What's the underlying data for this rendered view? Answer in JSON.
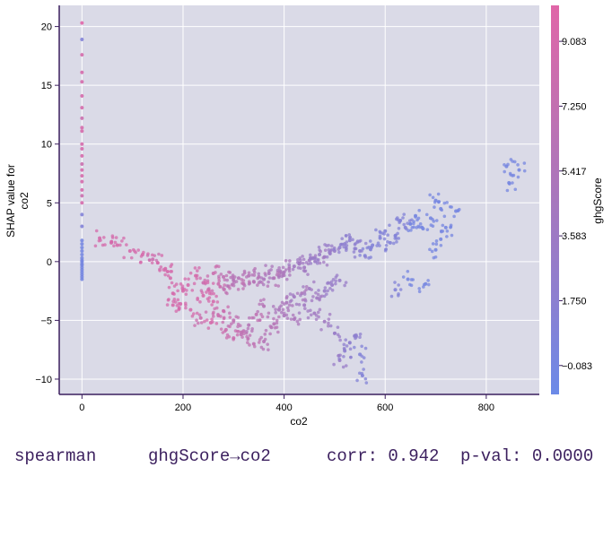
{
  "chart_data": {
    "type": "scatter",
    "xlabel": "co2",
    "ylabel": [
      "SHAP value for",
      "co2"
    ],
    "xlim": [
      -45,
      905
    ],
    "ylim": [
      -11.3,
      21.8
    ],
    "x_ticks": [
      0,
      200,
      400,
      600,
      800
    ],
    "y_ticks": [
      -10,
      -5,
      0,
      5,
      10,
      15,
      20
    ],
    "grid": true,
    "colorbar": {
      "label": "ghgScore",
      "range": [
        -0.9,
        10.1
      ],
      "ticks": [
        "9.083",
        "7.250",
        "5.417",
        "3.583",
        "1.750",
        "-0.083"
      ],
      "tick_values": [
        9.083,
        7.25,
        5.417,
        3.583,
        1.75,
        -0.083
      ],
      "colors": [
        "#6b8ae8",
        "#8d7fd0",
        "#a777bd",
        "#c370b0",
        "#e066a8"
      ]
    },
    "background_color": "#dadae7",
    "series": [
      {
        "group": "zero-column-high",
        "x": [
          0,
          0,
          0,
          0,
          0,
          0,
          0,
          0,
          0,
          0,
          0,
          0,
          0,
          0,
          0,
          0,
          0,
          0,
          0,
          0,
          0,
          0
        ],
        "y": [
          20.3,
          18.9,
          17.6,
          16.1,
          15.3,
          14.1,
          13.1,
          12.2,
          11.4,
          11.1,
          10.0,
          9.6,
          9.0,
          8.3,
          7.8,
          7.3,
          6.8,
          6.1,
          5.6,
          5.0,
          4.0,
          3.0
        ],
        "ghg": [
          10,
          1,
          9,
          9,
          9,
          9,
          9,
          8,
          9,
          9,
          9,
          9,
          9,
          8,
          9,
          9,
          9,
          9,
          8,
          9,
          1,
          1
        ]
      },
      {
        "group": "zero-column-low",
        "x": [
          0,
          0,
          0,
          0,
          0,
          0,
          0,
          0,
          0,
          0,
          0,
          0,
          0,
          0,
          0,
          0
        ],
        "y": [
          1.8,
          1.5,
          1.2,
          0.9,
          0.6,
          0.3,
          0.0,
          -0.3,
          -0.5,
          -0.7,
          -0.9,
          -1.1,
          -1.3,
          -1.5,
          0.1,
          -0.2
        ],
        "ghg": [
          0,
          0,
          0,
          0,
          0,
          0,
          0,
          0,
          0,
          0,
          0,
          0,
          0,
          0,
          0,
          0
        ]
      },
      {
        "group": "main-scatter",
        "x": [
          35,
          58,
          70,
          95,
          120,
          140,
          150,
          165,
          175,
          180,
          200,
          210,
          225,
          240,
          250,
          260,
          270,
          280,
          290,
          300,
          310,
          320,
          330,
          340,
          350,
          360,
          370,
          380,
          390,
          400,
          410,
          420,
          430,
          440,
          450,
          460,
          470,
          480,
          490,
          500,
          510,
          520,
          530,
          540,
          550,
          560,
          575,
          590,
          600,
          610,
          620,
          630,
          640,
          650,
          660,
          675,
          690,
          700,
          710,
          720,
          740,
          840,
          845,
          865,
          180,
          195,
          215,
          235,
          255,
          270,
          285,
          300,
          315,
          330,
          345,
          360,
          375,
          390,
          405,
          420,
          435,
          450,
          465,
          480,
          495,
          510,
          240,
          260,
          280,
          300,
          320,
          340,
          360,
          380,
          400,
          420,
          440,
          460,
          480,
          500,
          520,
          540,
          555,
          510,
          530,
          550,
          700,
          710,
          620,
          645,
          680
        ],
        "y": [
          2.0,
          1.6,
          1.4,
          0.9,
          0.6,
          0.2,
          -0.1,
          -0.6,
          -1.4,
          -3.7,
          -2.5,
          -2.0,
          -1.2,
          -1.8,
          -2.4,
          -1.0,
          -1.9,
          -1.3,
          -2.1,
          -1.6,
          -1.4,
          -1.9,
          -1.2,
          -1.7,
          -1.3,
          -1.5,
          -1.0,
          -1.4,
          -1.2,
          -0.9,
          -0.6,
          -0.4,
          -0.2,
          -0.5,
          0.1,
          0.3,
          0.6,
          0.4,
          0.8,
          0.9,
          1.2,
          1.5,
          1.8,
          1.1,
          0.9,
          0.5,
          1.4,
          2.0,
          2.6,
          1.6,
          2.2,
          3.5,
          2.9,
          3.2,
          3.9,
          2.8,
          3.7,
          5.2,
          4.5,
          2.9,
          4.3,
          8.1,
          6.7,
          7.8,
          -2.7,
          -3.6,
          -4.1,
          -4.8,
          -5.2,
          -4.6,
          -5.8,
          -5.0,
          -6.2,
          -5.4,
          -4.5,
          -3.8,
          -5.6,
          -4.1,
          -3.5,
          -3.0,
          -2.7,
          -2.3,
          -3.1,
          -2.5,
          -2.0,
          -1.6,
          -2.9,
          -3.4,
          -4.2,
          -6.5,
          -5.9,
          -7.0,
          -6.8,
          -5.3,
          -4.6,
          -4.9,
          -3.7,
          -4.4,
          -5.1,
          -6.1,
          -7.6,
          -6.3,
          -9.7,
          -8.4,
          -6.9,
          -7.9,
          1.0,
          1.9,
          -2.4,
          -1.5,
          -1.9
        ],
        "ghg": [
          9,
          9,
          9,
          9,
          9,
          8,
          9,
          9,
          9,
          9,
          9,
          9,
          9,
          8,
          9,
          8,
          8,
          7,
          7,
          6,
          6,
          7,
          6,
          6,
          6,
          5,
          5,
          6,
          5,
          5,
          5,
          4,
          4,
          4,
          4,
          3,
          3,
          4,
          3,
          3,
          2,
          2,
          2,
          2,
          2,
          1,
          1,
          1,
          1,
          1,
          1,
          1,
          1,
          0,
          0,
          0,
          0,
          0,
          0,
          0,
          0,
          0,
          0,
          0,
          9,
          9,
          9,
          8,
          9,
          8,
          8,
          7,
          7,
          6,
          7,
          6,
          6,
          5,
          5,
          4,
          5,
          4,
          4,
          3,
          3,
          3,
          9,
          9,
          8,
          8,
          7,
          7,
          6,
          6,
          5,
          5,
          4,
          4,
          4,
          3,
          2,
          2,
          1,
          3,
          2,
          1,
          0,
          0,
          1,
          0,
          0
        ]
      }
    ]
  },
  "footer": {
    "method": "spearman",
    "relation": "ghgScore→co2",
    "corr": "corr: 0.942",
    "pval": "p-val: 0.0000"
  }
}
